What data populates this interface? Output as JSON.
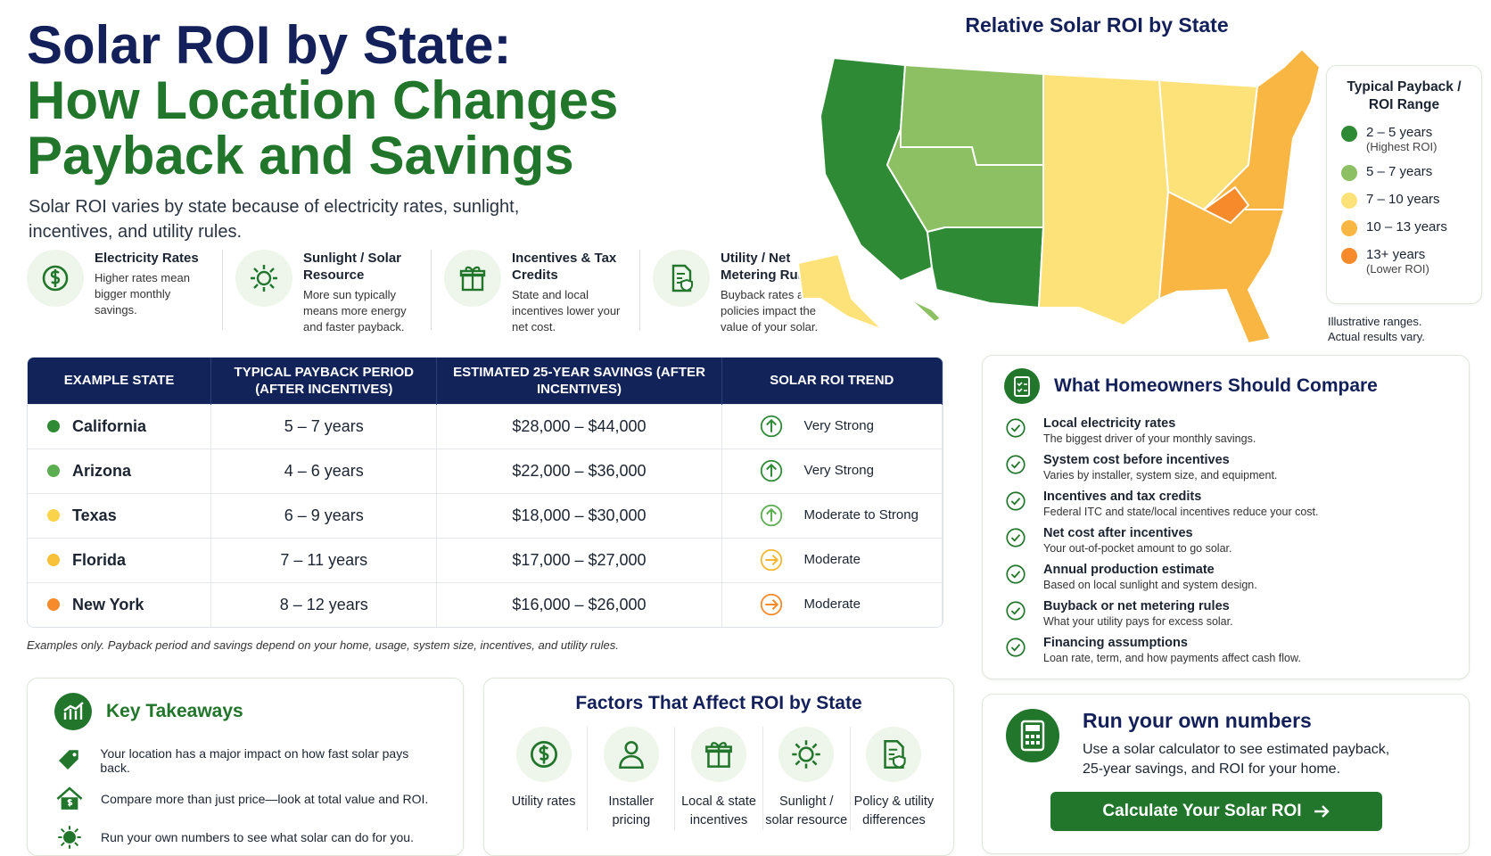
{
  "header": {
    "title_line1": "Solar ROI by State:",
    "title_line2": "How Location Changes",
    "title_line3": "Payback and Savings",
    "subtitle_line1": "Solar ROI varies by state because of electricity rates, sunlight,",
    "subtitle_line2": "incentives, and utility rules."
  },
  "factors": [
    {
      "title": "Electricity Rates",
      "desc": "Higher rates mean bigger monthly savings."
    },
    {
      "title": "Sunlight / Solar Resource",
      "desc": "More sun typically means more energy and faster payback."
    },
    {
      "title": "Incentives & Tax Credits",
      "desc": "State and local incentives lower your net cost."
    },
    {
      "title": "Utility / Net Metering Rules",
      "desc": "Buyback rates and policies impact the value of your solar."
    }
  ],
  "map": {
    "title": "Relative Solar ROI by State"
  },
  "legend": {
    "title": "Typical Payback / ROI Range",
    "items": [
      {
        "label": "2 – 5 years",
        "note": "(Highest ROI)",
        "color": "#2f8a35"
      },
      {
        "label": "5 – 7 years",
        "color": "#8cc063"
      },
      {
        "label": "7 – 10 years",
        "color": "#fde27a"
      },
      {
        "label": "10 – 13 years",
        "color": "#f9b642"
      },
      {
        "label": "13+ years",
        "note": "(Lower ROI)",
        "color": "#f78a2a"
      }
    ],
    "note": "Illustrative ranges. Actual results vary."
  },
  "table": {
    "headers": [
      "EXAMPLE STATE",
      "TYPICAL PAYBACK PERIOD (AFTER INCENTIVES)",
      "ESTIMATED 25-YEAR SAVINGS (AFTER INCENTIVES)",
      "SOLAR ROI TREND"
    ],
    "rows": [
      {
        "state": "California",
        "payback": "5 – 7 years",
        "savings": "$28,000 – $44,000",
        "trend": "Very Strong",
        "color": "#2f8a35",
        "trend_color": "#2f8a35",
        "trend_dir": "up"
      },
      {
        "state": "Arizona",
        "payback": "4 – 6 years",
        "savings": "$22,000 – $36,000",
        "trend": "Very Strong",
        "color": "#5aae4f",
        "trend_color": "#2f8a35",
        "trend_dir": "up"
      },
      {
        "state": "Texas",
        "payback": "6 – 9 years",
        "savings": "$18,000 – $30,000",
        "trend": "Moderate to Strong",
        "color": "#fbd34a",
        "trend_color": "#5aae4f",
        "trend_dir": "up"
      },
      {
        "state": "Florida",
        "payback": "7 – 11 years",
        "savings": "$17,000 – $27,000",
        "trend": "Moderate",
        "color": "#f9c13a",
        "trend_color": "#f5b631",
        "trend_dir": "right"
      },
      {
        "state": "New York",
        "payback": "8 – 12 years",
        "savings": "$16,000 – $26,000",
        "trend": "Moderate",
        "color": "#f78a2a",
        "trend_color": "#f78a2a",
        "trend_dir": "right"
      }
    ],
    "footnote": "Examples only. Payback period and savings depend on your home, usage, system size, incentives, and utility rules."
  },
  "compare": {
    "title": "What Homeowners Should Compare",
    "items": [
      {
        "title": "Local electricity rates",
        "desc": "The biggest driver of your monthly savings."
      },
      {
        "title": "System cost before incentives",
        "desc": "Varies by installer, system size, and equipment."
      },
      {
        "title": "Incentives and tax credits",
        "desc": "Federal ITC and state/local incentives reduce your cost."
      },
      {
        "title": "Net cost after incentives",
        "desc": "Your out-of-pocket amount to go solar."
      },
      {
        "title": "Annual production estimate",
        "desc": "Based on local sunlight and system design."
      },
      {
        "title": "Buyback or net metering rules",
        "desc": "What your utility pays for excess solar."
      },
      {
        "title": "Financing assumptions",
        "desc": "Loan rate, term, and how payments affect cash flow."
      }
    ]
  },
  "takeaways": {
    "title": "Key Takeaways",
    "items": [
      "Your location has a major impact on how fast solar pays back.",
      "Compare more than just price—look at total value and ROI.",
      "Run your own numbers to see what solar can do for you."
    ]
  },
  "affect": {
    "title": "Factors That Affect ROI by State",
    "items": [
      "Utility rates",
      "Installer pricing",
      "Local & state incentives",
      "Sunlight / solar resource",
      "Policy & utility differences"
    ]
  },
  "cta": {
    "title": "Run your own numbers",
    "desc": "Use a solar calculator to see estimated payback, 25-year savings, and ROI for your home.",
    "button": "Calculate Your Solar ROI"
  }
}
